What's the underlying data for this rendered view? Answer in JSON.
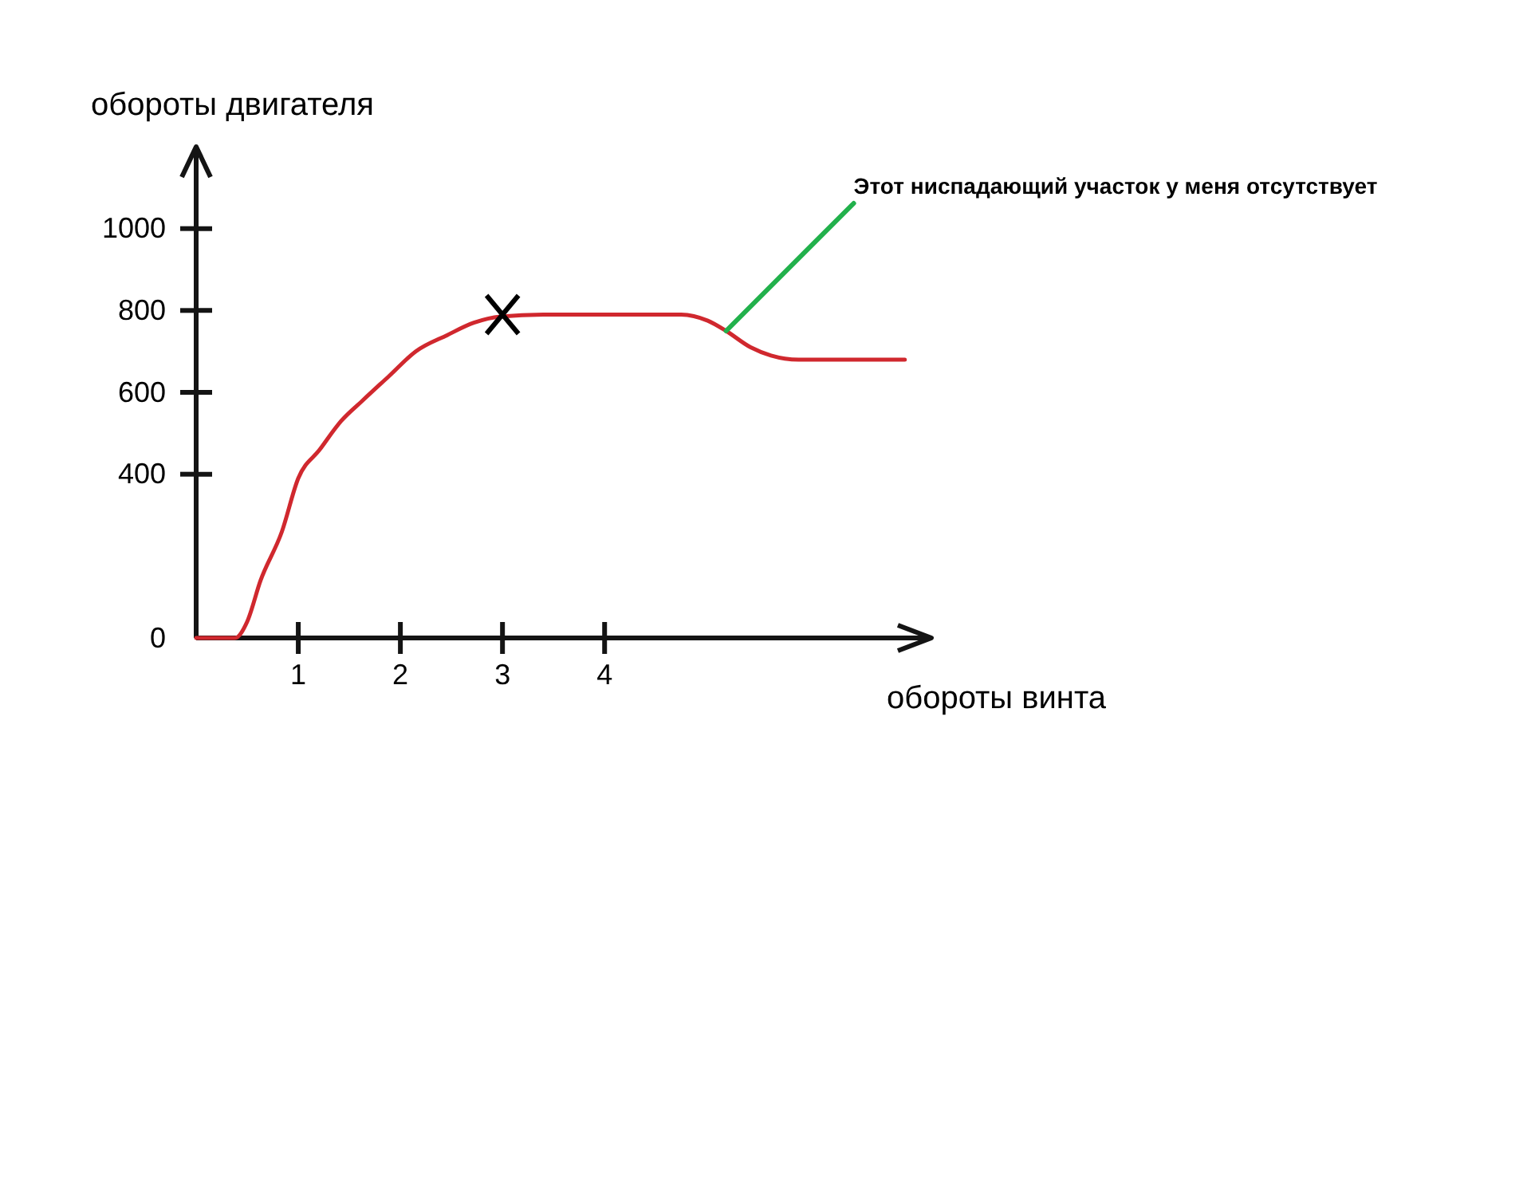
{
  "chart_data": {
    "type": "line",
    "xlabel": "обороты винта",
    "ylabel": "обороты двигателя",
    "xlim": [
      0,
      7.2
    ],
    "xticks": [
      1,
      2,
      3,
      4
    ],
    "ylim": [
      0,
      1200
    ],
    "yticks": [
      0,
      400,
      600,
      800,
      1000
    ],
    "series": [
      {
        "color": "#d0282e",
        "x": [
          0,
          0.38,
          0.5,
          0.63,
          0.84,
          1.0,
          1.21,
          1.42,
          1.63,
          1.89,
          2.15,
          2.46,
          2.72,
          2.98,
          3.4,
          4.0,
          4.75,
          5.01,
          5.19,
          5.43,
          5.63,
          5.9,
          6.94
        ],
        "values": [
          0,
          0,
          40,
          140,
          260,
          390,
          460,
          530,
          580,
          640,
          700,
          740,
          770,
          785,
          790,
          790,
          790,
          775,
          750,
          710,
          690,
          680,
          680
        ]
      },
      {
        "type": "scatter",
        "color": "#000000",
        "marker": "cross",
        "x": [
          3
        ],
        "values": [
          790
        ]
      }
    ],
    "annotations": [
      {
        "text": "Этот ниспадающий участок у меня отсутствует",
        "x": 5.19,
        "y": 750
      }
    ]
  }
}
